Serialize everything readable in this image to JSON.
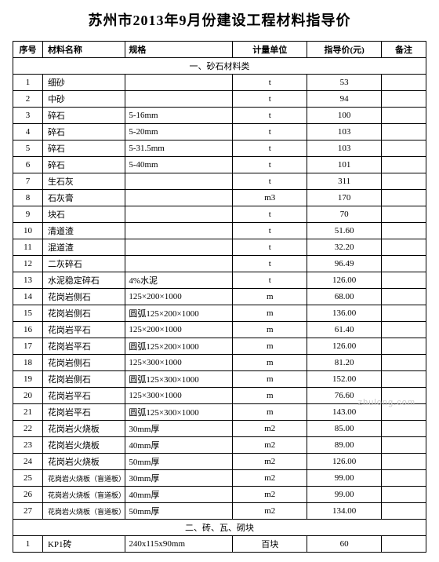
{
  "title": "苏州市2013年9月份建设工程材料指导价",
  "headers": {
    "idx": "序号",
    "name": "材料名称",
    "spec": "规格",
    "unit": "计量单位",
    "price": "指导价(元)",
    "note": "备注"
  },
  "section1": {
    "title": "一、砂石材料类",
    "rows": [
      {
        "idx": "1",
        "name": "细砂",
        "spec": "",
        "unit": "t",
        "price": "53",
        "note": ""
      },
      {
        "idx": "2",
        "name": "中砂",
        "spec": "",
        "unit": "t",
        "price": "94",
        "note": ""
      },
      {
        "idx": "3",
        "name": "碎石",
        "spec": "5-16mm",
        "unit": "t",
        "price": "100",
        "note": ""
      },
      {
        "idx": "4",
        "name": "碎石",
        "spec": "5-20mm",
        "unit": "t",
        "price": "103",
        "note": ""
      },
      {
        "idx": "5",
        "name": "碎石",
        "spec": "5-31.5mm",
        "unit": "t",
        "price": "103",
        "note": ""
      },
      {
        "idx": "6",
        "name": "碎石",
        "spec": "5-40mm",
        "unit": "t",
        "price": "101",
        "note": ""
      },
      {
        "idx": "7",
        "name": "生石灰",
        "spec": "",
        "unit": "t",
        "price": "311",
        "note": ""
      },
      {
        "idx": "8",
        "name": "石灰膏",
        "spec": "",
        "unit": "m3",
        "price": "170",
        "note": ""
      },
      {
        "idx": "9",
        "name": "块石",
        "spec": "",
        "unit": "t",
        "price": "70",
        "note": ""
      },
      {
        "idx": "10",
        "name": "清道渣",
        "spec": "",
        "unit": "t",
        "price": "51.60",
        "note": ""
      },
      {
        "idx": "11",
        "name": "混道渣",
        "spec": "",
        "unit": "t",
        "price": "32.20",
        "note": ""
      },
      {
        "idx": "12",
        "name": "二灰碎石",
        "spec": "",
        "unit": "t",
        "price": "96.49",
        "note": ""
      },
      {
        "idx": "13",
        "name": "水泥稳定碎石",
        "spec": "4%水泥",
        "unit": "t",
        "price": "126.00",
        "note": ""
      },
      {
        "idx": "14",
        "name": "花岗岩侧石",
        "spec": "125×200×1000",
        "unit": "m",
        "price": "68.00",
        "note": ""
      },
      {
        "idx": "15",
        "name": "花岗岩侧石",
        "spec": "圆弧125×200×1000",
        "unit": "m",
        "price": "136.00",
        "note": ""
      },
      {
        "idx": "16",
        "name": "花岗岩平石",
        "spec": "125×200×1000",
        "unit": "m",
        "price": "61.40",
        "note": ""
      },
      {
        "idx": "17",
        "name": "花岗岩平石",
        "spec": "圆弧125×200×1000",
        "unit": "m",
        "price": "126.00",
        "note": ""
      },
      {
        "idx": "18",
        "name": "花岗岩侧石",
        "spec": "125×300×1000",
        "unit": "m",
        "price": "81.20",
        "note": ""
      },
      {
        "idx": "19",
        "name": "花岗岩侧石",
        "spec": "圆弧125×300×1000",
        "unit": "m",
        "price": "152.00",
        "note": ""
      },
      {
        "idx": "20",
        "name": "花岗岩平石",
        "spec": "125×300×1000",
        "unit": "m",
        "price": "76.60",
        "note": ""
      },
      {
        "idx": "21",
        "name": "花岗岩平石",
        "spec": "圆弧125×300×1000",
        "unit": "m",
        "price": "143.00",
        "note": ""
      },
      {
        "idx": "22",
        "name": "花岗岩火烧板",
        "spec": "30mm厚",
        "unit": "m2",
        "price": "85.00",
        "note": ""
      },
      {
        "idx": "23",
        "name": "花岗岩火烧板",
        "spec": "40mm厚",
        "unit": "m2",
        "price": "89.00",
        "note": ""
      },
      {
        "idx": "24",
        "name": "花岗岩火烧板",
        "spec": "50mm厚",
        "unit": "m2",
        "price": "126.00",
        "note": ""
      },
      {
        "idx": "25",
        "name": "花岗岩火烧板（盲道板）",
        "spec": "30mm厚",
        "unit": "m2",
        "price": "99.00",
        "note": "",
        "small": true
      },
      {
        "idx": "26",
        "name": "花岗岩火烧板（盲道板）",
        "spec": "40mm厚",
        "unit": "m2",
        "price": "99.00",
        "note": "",
        "small": true
      },
      {
        "idx": "27",
        "name": "花岗岩火烧板（盲道板）",
        "spec": "50mm厚",
        "unit": "m2",
        "price": "134.00",
        "note": "",
        "small": true
      }
    ]
  },
  "section2": {
    "title": "二、砖、瓦、砌块",
    "rows": [
      {
        "idx": "1",
        "name": "KP1砖",
        "spec": "240x115x90mm",
        "unit": "百块",
        "price": "60",
        "note": ""
      }
    ]
  },
  "watermark": "zhulong.com"
}
